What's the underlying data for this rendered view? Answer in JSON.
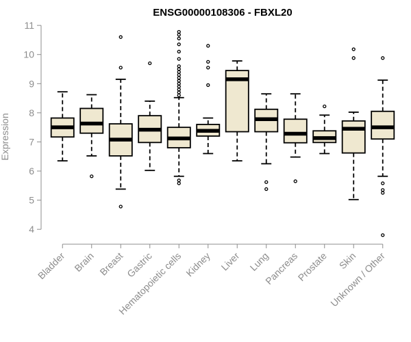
{
  "chart_data": {
    "type": "boxplot",
    "title": "ENSG00000108306 - FBXL20",
    "xlabel": "",
    "ylabel": "Expression",
    "ylim": [
      3.7,
      11.05
    ],
    "yticks": [
      4,
      5,
      6,
      7,
      8,
      9,
      10,
      11
    ],
    "grid": false,
    "box_fill": "#efe8d0",
    "box_stroke": "#000000",
    "categories": [
      "Bladder",
      "Brain",
      "Breast",
      "Gastric",
      "Hematopoietic cells",
      "Kidney",
      "Liver",
      "Lung",
      "Pancreas",
      "Prostate",
      "Skin",
      "Unknown / Other"
    ],
    "boxes": [
      {
        "whisker_low": 6.35,
        "q1": 7.17,
        "median": 7.5,
        "q3": 7.82,
        "whisker_high": 8.72,
        "outliers": []
      },
      {
        "whisker_low": 6.52,
        "q1": 7.3,
        "median": 7.63,
        "q3": 8.15,
        "whisker_high": 8.62,
        "outliers": [
          5.82
        ]
      },
      {
        "whisker_low": 5.38,
        "q1": 6.52,
        "median": 7.08,
        "q3": 7.62,
        "whisker_high": 9.15,
        "outliers": [
          4.78,
          9.55,
          10.6
        ]
      },
      {
        "whisker_low": 6.02,
        "q1": 6.98,
        "median": 7.42,
        "q3": 7.9,
        "whisker_high": 8.4,
        "outliers": [
          9.7
        ]
      },
      {
        "whisker_low": 5.82,
        "q1": 6.8,
        "median": 7.12,
        "q3": 7.5,
        "whisker_high": 8.52,
        "outliers": [
          5.58,
          5.68,
          8.6,
          8.7,
          8.8,
          8.9,
          9.0,
          9.1,
          9.2,
          9.3,
          9.4,
          9.5,
          9.6,
          9.85,
          10.1,
          10.35,
          10.55,
          10.68,
          10.78
        ]
      },
      {
        "whisker_low": 6.6,
        "q1": 7.2,
        "median": 7.38,
        "q3": 7.6,
        "whisker_high": 7.82,
        "outliers": [
          8.95,
          9.55,
          9.75,
          10.3
        ]
      },
      {
        "whisker_low": 6.35,
        "q1": 7.35,
        "median": 9.15,
        "q3": 9.45,
        "whisker_high": 9.78,
        "outliers": []
      },
      {
        "whisker_low": 6.25,
        "q1": 7.35,
        "median": 7.78,
        "q3": 8.12,
        "whisker_high": 8.65,
        "outliers": [
          5.38,
          5.62
        ]
      },
      {
        "whisker_low": 6.48,
        "q1": 6.97,
        "median": 7.28,
        "q3": 7.78,
        "whisker_high": 8.65,
        "outliers": [
          5.65
        ]
      },
      {
        "whisker_low": 6.6,
        "q1": 6.98,
        "median": 7.13,
        "q3": 7.38,
        "whisker_high": 7.92,
        "outliers": [
          8.22
        ]
      },
      {
        "whisker_low": 5.02,
        "q1": 6.62,
        "median": 7.45,
        "q3": 7.72,
        "whisker_high": 8.02,
        "outliers": [
          9.88,
          10.18
        ]
      },
      {
        "whisker_low": 5.82,
        "q1": 7.1,
        "median": 7.5,
        "q3": 8.05,
        "whisker_high": 9.12,
        "outliers": [
          3.8,
          5.25,
          5.35,
          5.58,
          9.88
        ]
      }
    ]
  }
}
